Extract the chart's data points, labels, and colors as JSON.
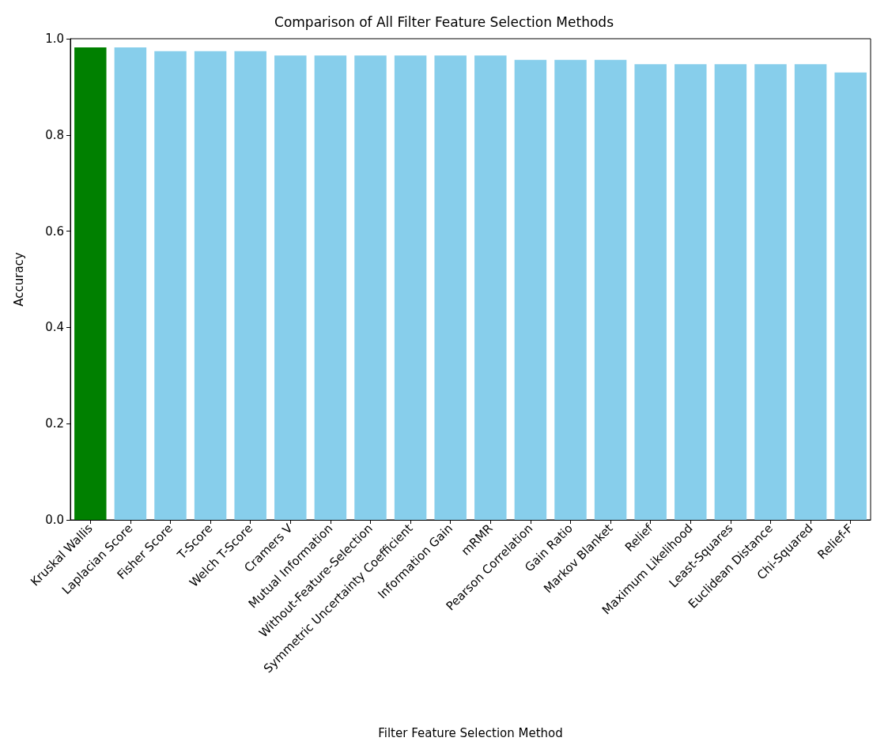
{
  "chart_data": {
    "type": "bar",
    "title": "Comparison of All Filter Feature Selection Methods",
    "xlabel": "Filter Feature Selection Method",
    "ylabel": "Accuracy",
    "categories": [
      "Kruskal Wallis",
      "Laplacian Score",
      "Fisher Score",
      "T-Score",
      "Welch T-Score",
      "Cramers V",
      "Mutual Information",
      "Without-Feature-Selection",
      "Symmetric Uncertainty Coefficient",
      "Information Gain",
      "mRMR",
      "Pearson Correlation",
      "Gain Ratio",
      "Markov Blanket",
      "Relief",
      "Maximum Likelihood",
      "Least-Squares",
      "Euclidean Distance",
      "Chi-Squared",
      "Relief-F"
    ],
    "values": [
      0.982,
      0.982,
      0.974,
      0.974,
      0.974,
      0.965,
      0.965,
      0.965,
      0.965,
      0.965,
      0.965,
      0.956,
      0.956,
      0.956,
      0.947,
      0.947,
      0.947,
      0.947,
      0.947,
      0.93
    ],
    "colors": [
      "#008000",
      "#87ceeb",
      "#87ceeb",
      "#87ceeb",
      "#87ceeb",
      "#87ceeb",
      "#87ceeb",
      "#87ceeb",
      "#87ceeb",
      "#87ceeb",
      "#87ceeb",
      "#87ceeb",
      "#87ceeb",
      "#87ceeb",
      "#87ceeb",
      "#87ceeb",
      "#87ceeb",
      "#87ceeb",
      "#87ceeb",
      "#87ceeb"
    ],
    "ylim": [
      0,
      1
    ],
    "yticks": [
      {
        "value": 0,
        "label": "0.0"
      },
      {
        "value": 0.2,
        "label": "0.2"
      },
      {
        "value": 0.4,
        "label": "0.4"
      },
      {
        "value": 0.6,
        "label": "0.6"
      },
      {
        "value": 0.8,
        "label": "0.8"
      },
      {
        "value": 1,
        "label": "1.0"
      }
    ],
    "grid": false
  }
}
